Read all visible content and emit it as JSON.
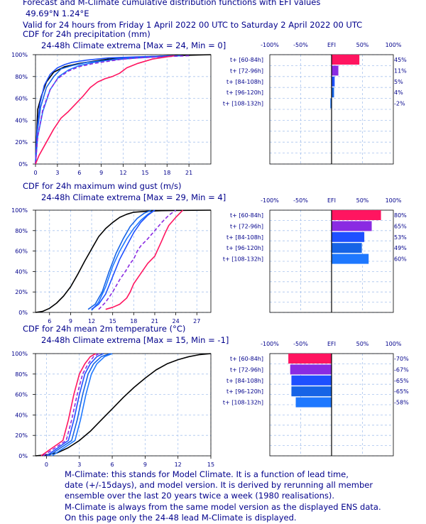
{
  "header": {
    "line1": "Forecast and M-Climate cumulative distribution functions with EFI values",
    "line2": "49.69°N 1.24°E",
    "line3": "Valid for 24 hours from Friday  1 April 2022 00 UTC to Saturday  2 April 2022 00 UTC"
  },
  "footnote": [
    "M-Climate: this stands for Model Climate. It is a function of lead time,",
    "date (+/-15days), and model version. It is derived by rerunning all member",
    "ensemble over the last 20 years twice a week (1980 realisations).",
    "M-Climate is always from the same model version as the displayed ENS data.",
    "On this page only the 24-48 lead M-Climate is displayed."
  ],
  "colors": {
    "text": "#00008b",
    "climate": "#000000",
    "t60_84": "#ff1560",
    "t72_96": "#8a2be2",
    "t84_108": "#1e50ff",
    "t96_120": "#1664e6",
    "t108_132": "#1e78ff",
    "grid": "#a9c4ee"
  },
  "efi_axis_labels": [
    "-100%",
    "-50%",
    "EFI",
    "50%",
    "100%"
  ],
  "cdf_y_ticks": [
    "0%",
    "20%",
    "40%",
    "60%",
    "80%",
    "100%"
  ],
  "chart_data": [
    {
      "type": "line",
      "title": "CDF for 24h precipitation (mm)",
      "subtitle": "24-48h Climate extrema [Max = 24, Min = 0]",
      "xlim": [
        0,
        24
      ],
      "ylim": [
        0,
        100
      ],
      "x_ticks": [
        0,
        3,
        6,
        9,
        12,
        15,
        18,
        21
      ],
      "series": [
        {
          "key": "climate",
          "x": [
            0,
            0.3,
            0.8,
            1.5,
            2.5,
            4,
            6,
            8,
            10,
            12,
            15,
            18,
            21,
            24
          ],
          "y": [
            0,
            50,
            62,
            75,
            84,
            89,
            92,
            94,
            96,
            97,
            98,
            99,
            99.5,
            100
          ]
        },
        {
          "key": "t60_84",
          "x": [
            0,
            0.5,
            1.5,
            2.5,
            3.5,
            4.5,
            5.5,
            6.5,
            7.5,
            8.5,
            9.5,
            10.5,
            11.5,
            12.5,
            14,
            16,
            19
          ],
          "y": [
            0,
            8,
            20,
            32,
            42,
            48,
            55,
            62,
            70,
            75,
            78,
            80,
            83,
            88,
            92,
            96,
            99
          ]
        },
        {
          "key": "t72_96",
          "x": [
            0,
            0.3,
            1,
            2,
            3,
            4.5,
            6,
            8,
            10,
            12,
            14,
            17,
            21
          ],
          "y": [
            0,
            25,
            50,
            68,
            78,
            85,
            89,
            92,
            94,
            96,
            97,
            98,
            99
          ]
        },
        {
          "key": "t84_108",
          "x": [
            0,
            0.2,
            0.6,
            1.2,
            2,
            3,
            4,
            5,
            7,
            10,
            14,
            19
          ],
          "y": [
            0,
            30,
            55,
            72,
            82,
            88,
            91,
            93,
            95,
            97,
            98,
            99
          ]
        },
        {
          "key": "t96_120",
          "x": [
            0,
            0.2,
            0.7,
            1.5,
            2.5,
            3.5,
            5,
            7,
            10,
            14,
            19
          ],
          "y": [
            0,
            28,
            52,
            70,
            80,
            87,
            90,
            93,
            95,
            97,
            99
          ]
        },
        {
          "key": "t108_132",
          "x": [
            0,
            0.3,
            1,
            2,
            3.2,
            4.5,
            6,
            8,
            11,
            15,
            20
          ],
          "y": [
            0,
            25,
            48,
            68,
            80,
            86,
            90,
            93,
            96,
            98,
            99
          ]
        }
      ],
      "efi": {
        "labels": [
          "t+ [60-84h]",
          "t+ [72-96h]",
          "t+ [84-108h]",
          "t+ [96-120h]",
          "t+ [108-132h]"
        ],
        "values": [
          45,
          11,
          5,
          4,
          -2
        ],
        "value_labels": [
          "45%",
          "11%",
          "5%",
          "4%",
          "-2%"
        ]
      }
    },
    {
      "type": "line",
      "title": "CDF for 24h maximum wind gust (m/s)",
      "subtitle": "24-48h Climate extrema [Max = 29, Min = 4]",
      "xlim": [
        4,
        29
      ],
      "ylim": [
        0,
        100
      ],
      "x_ticks": [
        6,
        9,
        12,
        15,
        18,
        21,
        24,
        27
      ],
      "series": [
        {
          "key": "climate",
          "x": [
            4,
            5,
            6,
            7,
            8,
            9,
            10,
            11,
            12,
            13,
            14,
            15,
            16,
            17,
            18,
            20,
            22,
            25,
            29
          ],
          "y": [
            0,
            1,
            4,
            9,
            16,
            25,
            37,
            50,
            62,
            74,
            82,
            88,
            93,
            96,
            98,
            99,
            99.5,
            99.8,
            100
          ]
        },
        {
          "key": "t60_84",
          "x": [
            14,
            15,
            16,
            17,
            17.5,
            18,
            19,
            20,
            21,
            22,
            22.5,
            23,
            24,
            25
          ],
          "y": [
            3,
            5,
            8,
            14,
            20,
            28,
            38,
            48,
            55,
            70,
            78,
            85,
            93,
            100
          ]
        },
        {
          "key": "t72_96",
          "x": [
            13,
            14,
            15,
            16,
            17,
            17.5,
            18,
            18.5,
            19,
            20,
            21,
            22,
            23,
            24
          ],
          "y": [
            3,
            10,
            20,
            32,
            42,
            48,
            52,
            60,
            65,
            72,
            80,
            88,
            95,
            100
          ]
        },
        {
          "key": "t84_108",
          "x": [
            12,
            13,
            14,
            15,
            16,
            17,
            18,
            19,
            20,
            21
          ],
          "y": [
            3,
            8,
            18,
            35,
            52,
            65,
            78,
            88,
            95,
            100
          ]
        },
        {
          "key": "t96_120",
          "x": [
            11.5,
            12.5,
            13.5,
            14.5,
            15.5,
            16.5,
            17.5,
            18.5,
            19.5,
            20.5
          ],
          "y": [
            3,
            8,
            20,
            40,
            58,
            72,
            84,
            92,
            97,
            100
          ]
        },
        {
          "key": "t108_132",
          "x": [
            12,
            13,
            14,
            15,
            16,
            17,
            18,
            19,
            20,
            21
          ],
          "y": [
            2,
            10,
            25,
            45,
            60,
            72,
            82,
            90,
            96,
            100
          ]
        }
      ],
      "efi": {
        "labels": [
          "t+ [60-84h]",
          "t+ [72-96h]",
          "t+ [84-108h]",
          "t+ [96-120h]",
          "t+ [108-132h]"
        ],
        "values": [
          80,
          65,
          53,
          49,
          60
        ],
        "value_labels": [
          "80%",
          "65%",
          "53%",
          "49%",
          "60%"
        ]
      }
    },
    {
      "type": "line",
      "title": "CDF for 24h mean 2m temperature (°C)",
      "subtitle": "24-48h Climate extrema [Max = 15, Min = -1]",
      "xlim": [
        -1,
        15
      ],
      "ylim": [
        0,
        100
      ],
      "x_ticks": [
        0,
        3,
        6,
        9,
        12,
        15
      ],
      "series": [
        {
          "key": "climate",
          "x": [
            -1,
            0,
            1,
            2,
            3,
            4,
            5,
            6,
            7,
            8,
            9,
            10,
            11,
            12,
            13,
            14,
            15
          ],
          "y": [
            0,
            1,
            3,
            8,
            15,
            24,
            35,
            46,
            57,
            67,
            76,
            84,
            90,
            94,
            97,
            99,
            100
          ]
        },
        {
          "key": "t60_84",
          "x": [
            -0.5,
            1.5,
            2,
            2.5,
            3,
            3.5,
            4,
            4.5
          ],
          "y": [
            0,
            15,
            35,
            60,
            80,
            90,
            97,
            100
          ]
        },
        {
          "key": "t72_96",
          "x": [
            -0.3,
            1.8,
            2.3,
            2.8,
            3.3,
            3.8,
            4.3,
            4.8
          ],
          "y": [
            0,
            15,
            35,
            60,
            80,
            90,
            97,
            100
          ]
        },
        {
          "key": "t84_108",
          "x": [
            0,
            2,
            2.5,
            3,
            3.5,
            4,
            4.6,
            5.2
          ],
          "y": [
            0,
            15,
            35,
            60,
            80,
            90,
            97,
            100
          ]
        },
        {
          "key": "t96_120",
          "x": [
            0.2,
            2.3,
            2.8,
            3.3,
            3.8,
            4.3,
            5,
            5.8
          ],
          "y": [
            0,
            15,
            35,
            60,
            80,
            90,
            97,
            100
          ]
        },
        {
          "key": "t108_132",
          "x": [
            0.5,
            2.6,
            3.1,
            3.6,
            4.1,
            4.6,
            5.3,
            6
          ],
          "y": [
            0,
            15,
            35,
            60,
            80,
            90,
            97,
            100
          ]
        }
      ],
      "efi": {
        "labels": [
          "t+ [60-84h]",
          "t+ [72-96h]",
          "t+ [84-108h]",
          "t+ [96-120h]",
          "t+ [108-132h]"
        ],
        "values": [
          -70,
          -67,
          -65,
          -65,
          -58
        ],
        "value_labels": [
          "-70%",
          "-67%",
          "-65%",
          "-65%",
          "-58%"
        ]
      }
    }
  ]
}
